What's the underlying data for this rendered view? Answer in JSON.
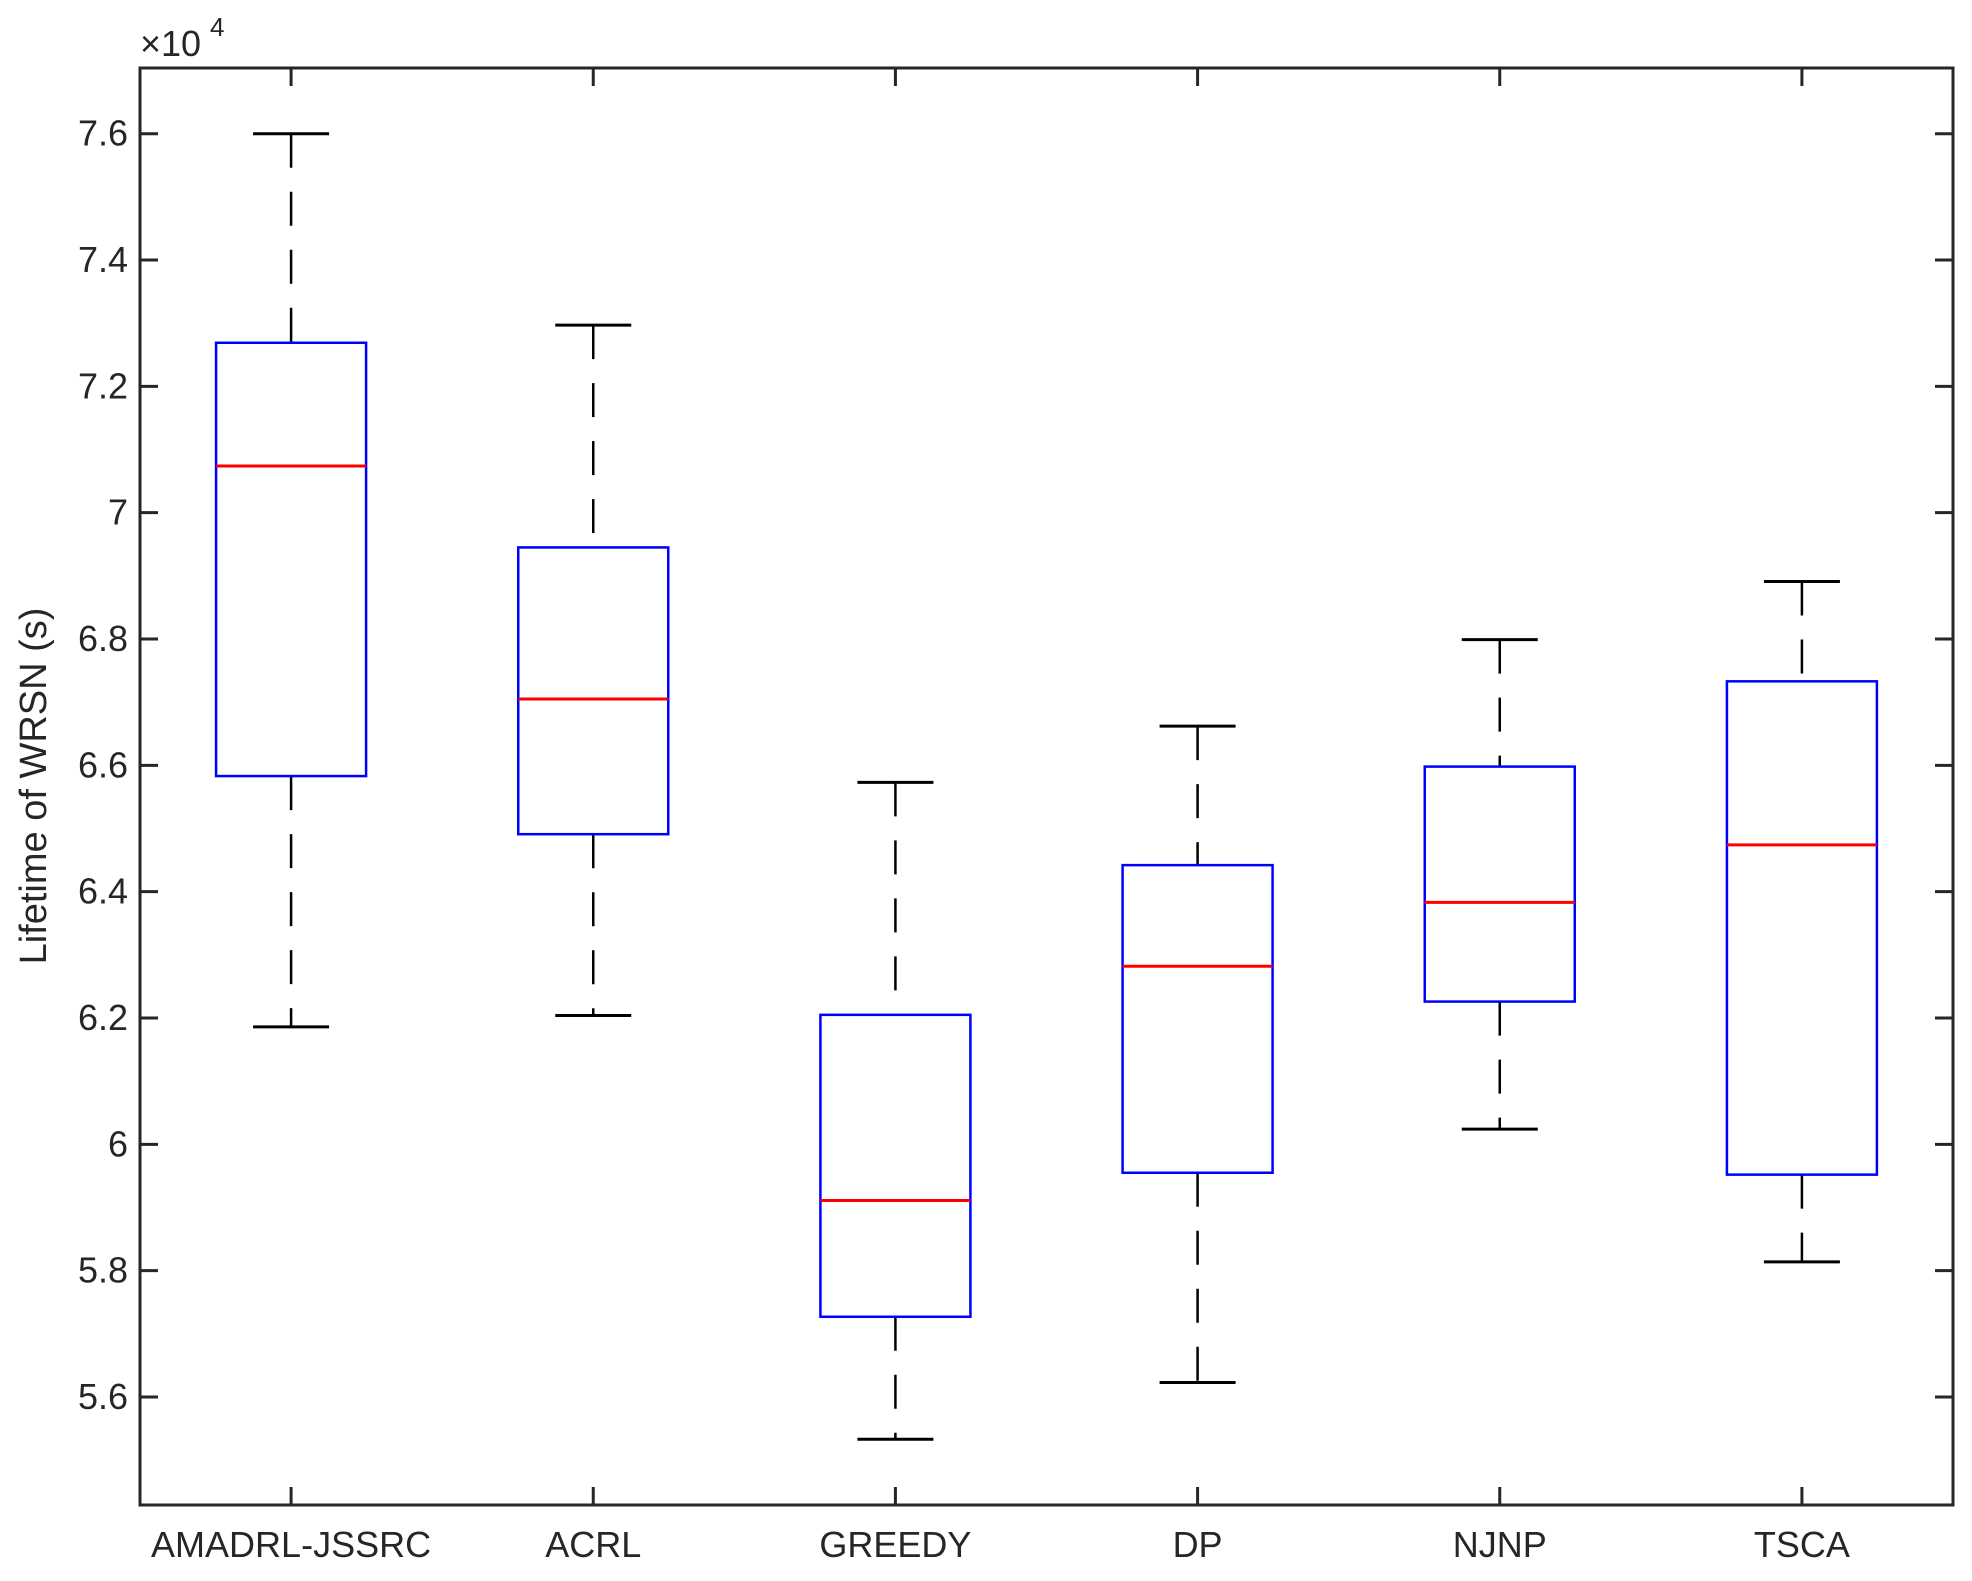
{
  "chart_data": {
    "type": "box",
    "title": "",
    "xlabel": "",
    "ylabel": "Lifetime of WRSN (s)",
    "exponent_label": "×10",
    "exponent_power": "4",
    "ylim": [
      54290,
      77040
    ],
    "yticks": [
      56000,
      58000,
      60000,
      62000,
      64000,
      66000,
      68000,
      70000,
      72000,
      74000,
      76000
    ],
    "ytick_labels": [
      "5.6",
      "5.8",
      "6",
      "6.2",
      "6.4",
      "6.6",
      "6.8",
      "7",
      "7.2",
      "7.4",
      "7.6"
    ],
    "categories": [
      "AMADRL-JSSRC",
      "ACRL",
      "GREEDY",
      "DP",
      "NJNP",
      "TSCA"
    ],
    "boxes": [
      {
        "category": "AMADRL-JSSRC",
        "min": 61860,
        "q1": 65830,
        "median": 70740,
        "q3": 72690,
        "max": 76000
      },
      {
        "category": "ACRL",
        "min": 62040,
        "q1": 64910,
        "median": 67050,
        "q3": 69450,
        "max": 72970
      },
      {
        "category": "GREEDY",
        "min": 55330,
        "q1": 57270,
        "median": 59110,
        "q3": 62050,
        "max": 65730
      },
      {
        "category": "DP",
        "min": 56230,
        "q1": 59550,
        "median": 62820,
        "q3": 64420,
        "max": 66620
      },
      {
        "category": "NJNP",
        "min": 60240,
        "q1": 62260,
        "median": 63830,
        "q3": 65980,
        "max": 67990
      },
      {
        "category": "TSCA",
        "min": 58140,
        "q1": 59520,
        "median": 64740,
        "q3": 67330,
        "max": 68910
      }
    ],
    "colors": {
      "box": "#0000ff",
      "median": "#ff0000",
      "whisker": "#000000",
      "axis": "#262626"
    },
    "grid": false,
    "legend": "none"
  }
}
